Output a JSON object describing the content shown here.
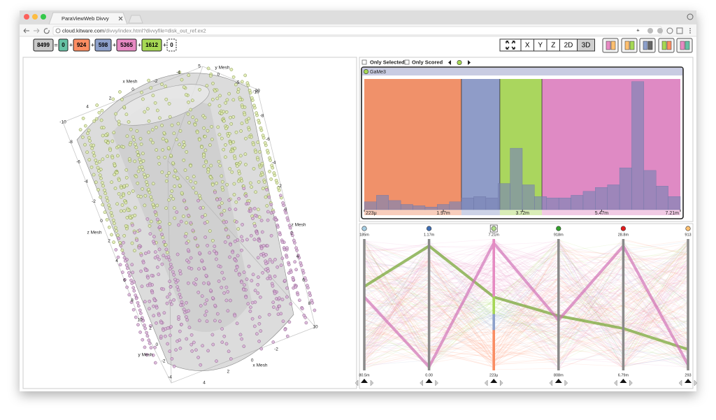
{
  "browser": {
    "tab_title": "ParaViewWeb Divvy",
    "url_host": "cloud.kitware.com",
    "url_path": "/divvy/index.html?divvyfile=disk_out_ref.ex2"
  },
  "toolbar": {
    "total": 8499,
    "equals": "=",
    "plus": "+",
    "groups": [
      {
        "count": 0,
        "color": "#66c2a5"
      },
      {
        "count": 924,
        "color": "#fc8d62"
      },
      {
        "count": 598,
        "color": "#8da0cb"
      },
      {
        "count": 5365,
        "color": "#e78ac3"
      },
      {
        "count": 1612,
        "color": "#a6d854"
      },
      {
        "count": 0,
        "color": "#ffffff",
        "border": "dashed"
      }
    ],
    "view_buttons": [
      "X",
      "Y",
      "Z",
      "2D",
      "3D"
    ],
    "active_view_index": 4
  },
  "view3d": {
    "axes": [
      {
        "title": "x Mesh",
        "ticks": [
          4,
          2,
          0,
          -2,
          -4
        ]
      },
      {
        "title": "y Mesh",
        "ticks": [
          5,
          0,
          -5,
          -10
        ]
      },
      {
        "title": "z Mesh",
        "ticks": [
          -10,
          -8,
          -6,
          -4,
          -2,
          0,
          2,
          4,
          6,
          8,
          10
        ]
      },
      {
        "title": "z Mesh",
        "ticks": [
          -10,
          -8,
          -6,
          -4,
          -2,
          0,
          2,
          4,
          6,
          8,
          10
        ]
      },
      {
        "title": "y Mesh",
        "ticks": [
          2,
          0,
          -2,
          -4
        ]
      },
      {
        "title": "x Mesh",
        "ticks": [
          4,
          2,
          0,
          -2
        ]
      }
    ]
  },
  "histogram": {
    "only_selected": "Only Selected",
    "only_scored": "Only Scored",
    "field": "GaMe3",
    "values": [
      6,
      11,
      7,
      4,
      3,
      2,
      4,
      6,
      9,
      10,
      9,
      20,
      47,
      19,
      10,
      9,
      9,
      11,
      14,
      17,
      19,
      32,
      98,
      30,
      18,
      10
    ],
    "ylim": [
      0,
      100
    ],
    "xlim": [
      0.223,
      7.21
    ],
    "xticks": [
      {
        "value": 0.223,
        "label": "223μ"
      },
      {
        "value": 1.97,
        "label": "1.97m"
      },
      {
        "value": 3.72,
        "label": "3.72m"
      },
      {
        "value": 5.47,
        "label": "5.47m"
      },
      {
        "value": 7.21,
        "label": "7.21m"
      }
    ],
    "region_edges": [
      2.37,
      3.22,
      4.15
    ],
    "region_colors": [
      "#f0916a",
      "#8f9cc8",
      "#aad65e",
      "#df8ac4"
    ],
    "bar_color": "#7a84b6"
  },
  "parallel": {
    "axes": [
      {
        "color": "#a6cee3",
        "top": "185m",
        "bottom": "80.5m"
      },
      {
        "color": "#3f6fb5",
        "top": "1.17m",
        "bottom": "0.00"
      },
      {
        "color": "#b2df8a",
        "top": "7.21m",
        "bottom": "223μ"
      },
      {
        "color": "#33a02c",
        "top": "918m",
        "bottom": "808m"
      },
      {
        "color": "#e31a1c",
        "top": "28.8m",
        "bottom": "6.79m"
      },
      {
        "color": "#fdbf6f",
        "top": "913",
        "bottom": "293"
      }
    ]
  }
}
